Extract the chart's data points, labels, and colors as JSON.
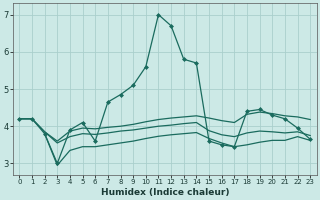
{
  "xlabel": "Humidex (Indice chaleur)",
  "xlim": [
    -0.5,
    23.5
  ],
  "ylim": [
    2.7,
    7.3
  ],
  "yticks": [
    3,
    4,
    5,
    6,
    7
  ],
  "xticks": [
    0,
    1,
    2,
    3,
    4,
    5,
    6,
    7,
    8,
    9,
    10,
    11,
    12,
    13,
    14,
    15,
    16,
    17,
    18,
    19,
    20,
    21,
    22,
    23
  ],
  "bg_color": "#cce9e6",
  "grid_color": "#aacfcc",
  "line_color": "#1a6b5e",
  "lines": [
    {
      "x": [
        0,
        1,
        2,
        3,
        4,
        5,
        6,
        7,
        8,
        9,
        10,
        11,
        12,
        13,
        14,
        15,
        16,
        17,
        18,
        19,
        20,
        21,
        22,
        23
      ],
      "y": [
        4.2,
        4.2,
        3.8,
        3.0,
        3.9,
        4.1,
        3.6,
        4.65,
        4.85,
        5.1,
        5.6,
        7.0,
        6.7,
        5.8,
        5.7,
        3.6,
        3.5,
        3.45,
        4.4,
        4.45,
        4.3,
        4.2,
        3.95,
        3.65
      ],
      "marker": "D",
      "markersize": 2.0,
      "linewidth": 0.9,
      "has_marker": true
    },
    {
      "x": [
        0,
        1,
        2,
        3,
        4,
        5,
        6,
        7,
        8,
        9,
        10,
        11,
        12,
        13,
        14,
        15,
        16,
        17,
        18,
        19,
        20,
        21,
        22,
        23
      ],
      "y": [
        4.2,
        4.2,
        3.85,
        3.6,
        3.87,
        3.95,
        3.93,
        3.97,
        4.0,
        4.05,
        4.12,
        4.18,
        4.22,
        4.25,
        4.28,
        4.22,
        4.15,
        4.1,
        4.32,
        4.38,
        4.34,
        4.28,
        4.25,
        4.18
      ],
      "marker": null,
      "markersize": 0,
      "linewidth": 0.9,
      "has_marker": false
    },
    {
      "x": [
        0,
        1,
        2,
        3,
        4,
        5,
        6,
        7,
        8,
        9,
        10,
        11,
        12,
        13,
        14,
        15,
        16,
        17,
        18,
        19,
        20,
        21,
        22,
        23
      ],
      "y": [
        4.2,
        4.2,
        3.85,
        3.55,
        3.72,
        3.8,
        3.78,
        3.82,
        3.87,
        3.9,
        3.95,
        4.0,
        4.03,
        4.07,
        4.1,
        3.88,
        3.77,
        3.72,
        3.82,
        3.87,
        3.85,
        3.82,
        3.85,
        3.75
      ],
      "marker": null,
      "markersize": 0,
      "linewidth": 0.9,
      "has_marker": false
    },
    {
      "x": [
        2,
        3,
        4,
        5,
        6,
        7,
        8,
        9,
        10,
        11,
        12,
        13,
        14,
        15,
        16,
        17,
        18,
        19,
        20,
        21,
        22,
        23
      ],
      "y": [
        3.8,
        2.95,
        3.35,
        3.45,
        3.45,
        3.5,
        3.55,
        3.6,
        3.67,
        3.73,
        3.77,
        3.8,
        3.83,
        3.67,
        3.55,
        3.45,
        3.5,
        3.57,
        3.62,
        3.62,
        3.72,
        3.62
      ],
      "marker": null,
      "markersize": 0,
      "linewidth": 0.9,
      "has_marker": false
    }
  ],
  "figsize": [
    3.2,
    2.0
  ],
  "dpi": 100
}
